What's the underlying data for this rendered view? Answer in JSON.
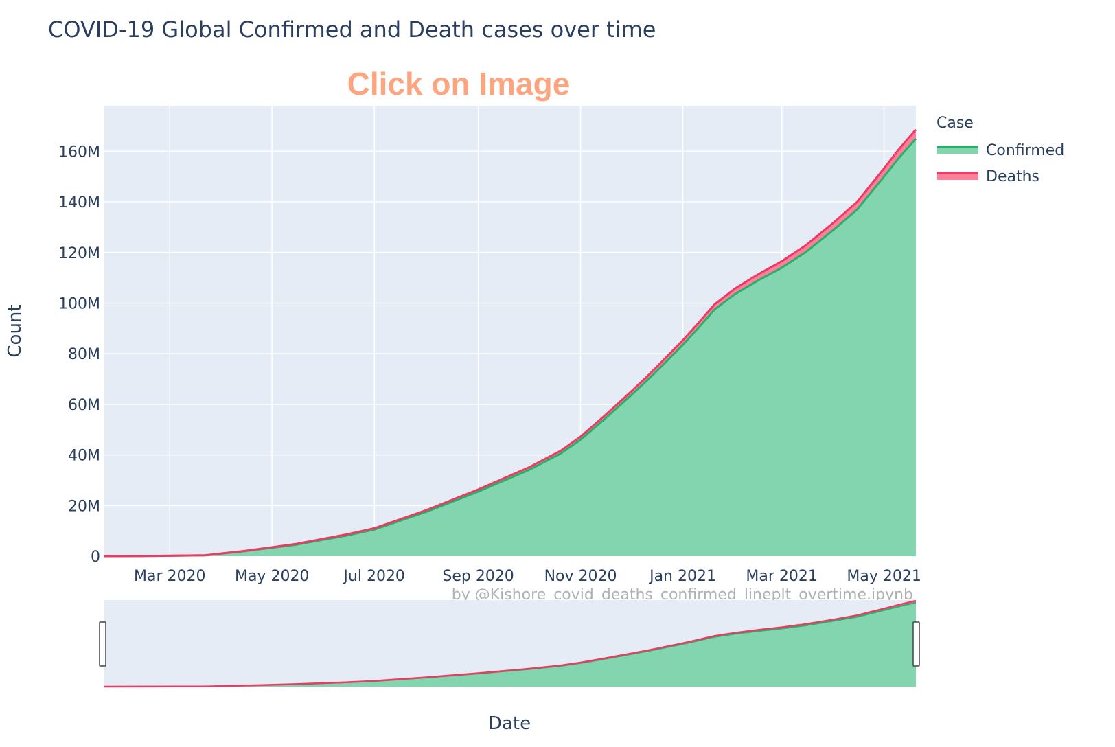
{
  "chart_data": {
    "type": "area",
    "title": "COVID-19 Global Confirmed and Death cases over time",
    "annotation": "Click on Image",
    "watermark": "by @Kishore_covid_deaths_confirmed_lineplt_overtime.ipynb",
    "xlabel": "Date",
    "ylabel": "Count",
    "ylim": [
      0,
      178000000
    ],
    "xlim": [
      "2020-01-22",
      "2021-05-20"
    ],
    "y_ticks": [
      0,
      20000000,
      40000000,
      60000000,
      80000000,
      100000000,
      120000000,
      140000000,
      160000000
    ],
    "y_tick_labels": [
      "0",
      "20M",
      "40M",
      "60M",
      "80M",
      "100M",
      "120M",
      "140M",
      "160M"
    ],
    "x_ticks": [
      "2020-03-01",
      "2020-05-01",
      "2020-07-01",
      "2020-09-01",
      "2020-11-01",
      "2021-01-01",
      "2021-03-01",
      "2021-05-01"
    ],
    "x_tick_labels": [
      "Mar 2020",
      "May 2020",
      "Jul 2020",
      "Sep 2020",
      "Nov 2020",
      "Jan 2021",
      "Mar 2021",
      "May 2021"
    ],
    "grid": true,
    "stacked": true,
    "legend": {
      "title": "Case",
      "position": "top-right"
    },
    "rangeslider": true,
    "x": [
      "2020-01-22",
      "2020-02-15",
      "2020-03-22",
      "2020-04-15",
      "2020-05-15",
      "2020-06-15",
      "2020-07-01",
      "2020-08-01",
      "2020-09-01",
      "2020-10-01",
      "2020-10-20",
      "2020-11-01",
      "2020-11-15",
      "2020-12-01",
      "2020-12-10",
      "2020-12-20",
      "2021-01-01",
      "2021-01-10",
      "2021-01-20",
      "2021-02-01",
      "2021-02-15",
      "2021-03-01",
      "2021-03-15",
      "2021-04-01",
      "2021-04-15",
      "2021-05-01",
      "2021-05-10",
      "2021-05-20"
    ],
    "series": [
      {
        "name": "Confirmed",
        "color": "#27b06a",
        "fill": "#83d5b0",
        "values": [
          560,
          80000,
          330000,
          2000000,
          4500000,
          8200000,
          10500000,
          17500000,
          25500000,
          34000000,
          40500000,
          46000000,
          54000000,
          63500000,
          69000000,
          75500000,
          83500000,
          90000000,
          97500000,
          103500000,
          109000000,
          114000000,
          120000000,
          129000000,
          137000000,
          150000000,
          157500000,
          165000000
        ]
      },
      {
        "name": "Deaths",
        "color": "#ec3a62",
        "fill": "#ff7f9a",
        "values": [
          17,
          2700,
          15000,
          130000,
          310000,
          460000,
          510000,
          690000,
          860000,
          1020000,
          1110000,
          1200000,
          1330000,
          1470000,
          1560000,
          1660000,
          1820000,
          1940000,
          2050000,
          2200000,
          2400000,
          2550000,
          2670000,
          2880000,
          3000000,
          3250000,
          3450000,
          3600000
        ]
      }
    ]
  }
}
